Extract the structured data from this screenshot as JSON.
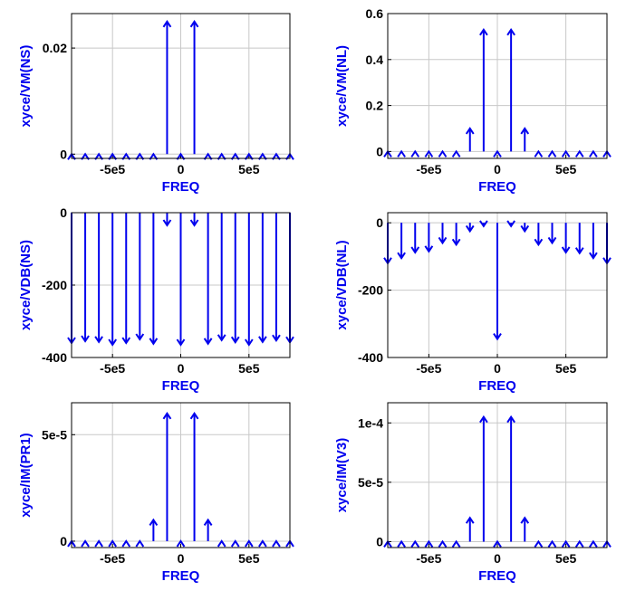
{
  "colors": {
    "series": "#0000ee",
    "axis_label": "#0000ee",
    "grid": "#c8c8c8",
    "tick_label": "#000000"
  },
  "chart_data": [
    {
      "type": "stem",
      "xlabel": "FREQ",
      "ylabel": "xyce/VM(NS)",
      "xlim": [
        -800000,
        800000
      ],
      "ylim": [
        -0.0008,
        0.0265
      ],
      "xticks": [
        -500000,
        0,
        500000
      ],
      "xtick_labels": [
        "-5e5",
        "0",
        "5e5"
      ],
      "yticks": [
        0,
        0.02
      ],
      "ytick_labels": [
        "0",
        "0.02"
      ],
      "grid": true,
      "x": [
        -800000,
        -700000,
        -600000,
        -500000,
        -400000,
        -300000,
        -200000,
        -100000,
        0,
        100000,
        200000,
        300000,
        400000,
        500000,
        600000,
        700000,
        800000
      ],
      "y": [
        0,
        0,
        0,
        0,
        0,
        0,
        0,
        0.025,
        0,
        0.025,
        0,
        0,
        0,
        0,
        0,
        0,
        0
      ]
    },
    {
      "type": "stem",
      "xlabel": "FREQ",
      "ylabel": "xyce/VM(NL)",
      "xlim": [
        -800000,
        800000
      ],
      "ylim": [
        -0.03,
        0.6
      ],
      "xticks": [
        -500000,
        0,
        500000
      ],
      "xtick_labels": [
        "-5e5",
        "0",
        "5e5"
      ],
      "yticks": [
        0,
        0.2,
        0.4,
        0.6
      ],
      "ytick_labels": [
        "0",
        "0.2",
        "0.4",
        "0.6"
      ],
      "grid": true,
      "x": [
        -800000,
        -700000,
        -600000,
        -500000,
        -400000,
        -300000,
        -200000,
        -100000,
        0,
        100000,
        200000,
        300000,
        400000,
        500000,
        600000,
        700000,
        800000
      ],
      "y": [
        0,
        0,
        0,
        0,
        0,
        0,
        0.1,
        0.53,
        0,
        0.53,
        0.1,
        0,
        0,
        0,
        0,
        0,
        0
      ]
    },
    {
      "type": "stem",
      "xlabel": "FREQ",
      "ylabel": "xyce/VDB(NS)",
      "xlim": [
        -800000,
        800000
      ],
      "ylim": [
        -400,
        0
      ],
      "xticks": [
        -500000,
        0,
        500000
      ],
      "xtick_labels": [
        "-5e5",
        "0",
        "5e5"
      ],
      "yticks": [
        -400,
        -200,
        0
      ],
      "ytick_labels": [
        "-400",
        "-200",
        "0"
      ],
      "grid": true,
      "x": [
        -800000,
        -700000,
        -600000,
        -500000,
        -400000,
        -300000,
        -200000,
        -100000,
        0,
        100000,
        200000,
        300000,
        400000,
        500000,
        600000,
        700000,
        800000
      ],
      "y": [
        -360,
        -355,
        -357,
        -365,
        -360,
        -350,
        -362,
        -35,
        -365,
        -35,
        -362,
        -352,
        -358,
        -365,
        -357,
        -353,
        -358
      ]
    },
    {
      "type": "stem",
      "xlabel": "FREQ",
      "ylabel": "xyce/VDB(NL)",
      "xlim": [
        -800000,
        800000
      ],
      "ylim": [
        -400,
        30
      ],
      "xticks": [
        -500000,
        0,
        500000
      ],
      "xtick_labels": [
        "-5e5",
        "0",
        "5e5"
      ],
      "yticks": [
        -400,
        -200,
        0
      ],
      "ytick_labels": [
        "-400",
        "-200",
        "0"
      ],
      "grid": true,
      "x": [
        -800000,
        -700000,
        -600000,
        -500000,
        -400000,
        -300000,
        -200000,
        -100000,
        0,
        100000,
        200000,
        300000,
        400000,
        500000,
        600000,
        700000,
        800000
      ],
      "y": [
        -120,
        -105,
        -88,
        -85,
        -60,
        -65,
        -25,
        -10,
        -345,
        -10,
        -25,
        -65,
        -60,
        -88,
        -90,
        -105,
        -120
      ]
    },
    {
      "type": "stem",
      "xlabel": "FREQ",
      "ylabel": "xyce/IM(PR1)",
      "xlim": [
        -800000,
        800000
      ],
      "ylim": [
        -3e-06,
        6.5e-05
      ],
      "xticks": [
        -500000,
        0,
        500000
      ],
      "xtick_labels": [
        "-5e5",
        "0",
        "5e5"
      ],
      "yticks": [
        0,
        5e-05
      ],
      "ytick_labels": [
        "0",
        "5e-5"
      ],
      "grid": true,
      "x": [
        -800000,
        -700000,
        -600000,
        -500000,
        -400000,
        -300000,
        -200000,
        -100000,
        0,
        100000,
        200000,
        300000,
        400000,
        500000,
        600000,
        700000,
        800000
      ],
      "y": [
        0,
        0,
        0,
        0,
        0,
        0,
        1e-05,
        6e-05,
        0,
        6e-05,
        1e-05,
        0,
        0,
        0,
        0,
        0,
        0
      ]
    },
    {
      "type": "stem",
      "xlabel": "FREQ",
      "ylabel": "xyce/IM(V3)",
      "xlim": [
        -800000,
        800000
      ],
      "ylim": [
        -5e-06,
        0.000117
      ],
      "xticks": [
        -500000,
        0,
        500000
      ],
      "xtick_labels": [
        "-5e5",
        "0",
        "5e5"
      ],
      "yticks": [
        0,
        5e-05,
        0.0001
      ],
      "ytick_labels": [
        "0",
        "5e-5",
        "1e-4"
      ],
      "grid": true,
      "x": [
        -800000,
        -700000,
        -600000,
        -500000,
        -400000,
        -300000,
        -200000,
        -100000,
        0,
        100000,
        200000,
        300000,
        400000,
        500000,
        600000,
        700000,
        800000
      ],
      "y": [
        0,
        0,
        0,
        0,
        0,
        0,
        2e-05,
        0.000105,
        0,
        0.000105,
        2e-05,
        0,
        0,
        0,
        0,
        0,
        0
      ]
    }
  ]
}
